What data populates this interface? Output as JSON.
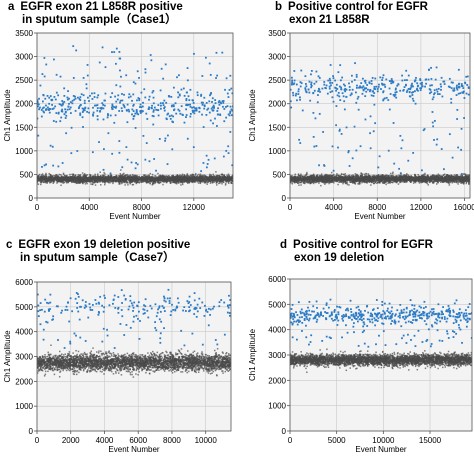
{
  "colors": {
    "positive": "#2b7bc6",
    "negative": "#4a4a4a",
    "grid": "#c9c9c9",
    "frame": "#555555"
  },
  "chart_data": [
    {
      "type": "scatter",
      "letter": "a",
      "title_lines": [
        "EGFR exon 21 L858R positive",
        "in sputum sample（Case1）"
      ],
      "xlabel": "Event Number",
      "ylabel": "Ch1 Amplitude",
      "xlim": [
        0,
        15000
      ],
      "ylim": [
        0,
        3500
      ],
      "xticks": [
        0,
        4000,
        8000,
        12000
      ],
      "yticks": [
        0,
        500,
        1000,
        1500,
        2000,
        2500,
        3000,
        3500
      ],
      "grid": true,
      "series": [
        {
          "role": "positive",
          "count": 520,
          "center": 1950,
          "spread": 160,
          "outlier_fraction": 0.3,
          "outlier_range": [
            500,
            3250
          ]
        },
        {
          "role": "negative",
          "count": 3200,
          "center": 400,
          "spread": 40
        }
      ]
    },
    {
      "type": "scatter",
      "letter": "b",
      "title_lines": [
        "Positive control for EGFR",
        "exon 21 L858R"
      ],
      "xlabel": "Event Number",
      "ylabel": "Ch1 Amplitude",
      "xlim": [
        0,
        16500
      ],
      "ylim": [
        0,
        3500
      ],
      "xticks": [
        0,
        4000,
        8000,
        12000,
        16000
      ],
      "yticks": [
        0,
        500,
        1000,
        1500,
        2000,
        2500,
        3000,
        3500
      ],
      "grid": true,
      "series": [
        {
          "role": "positive",
          "count": 420,
          "center": 2350,
          "spread": 130,
          "outlier_fraction": 0.3,
          "outlier_range": [
            500,
            2900
          ]
        },
        {
          "role": "negative",
          "count": 3200,
          "center": 400,
          "spread": 40
        }
      ]
    },
    {
      "type": "scatter",
      "letter": "c",
      "title_lines": [
        "EGFR exon 19 deletion positive",
        "in sputum sample（Case7）"
      ],
      "xlabel": "Event Number",
      "ylabel": "Ch1 Amplitude",
      "xlim": [
        0,
        11500
      ],
      "ylim": [
        0,
        6000
      ],
      "xticks": [
        0,
        2000,
        4000,
        6000,
        8000,
        10000
      ],
      "yticks": [
        0,
        1000,
        2000,
        3000,
        4000,
        5000,
        6000
      ],
      "grid": true,
      "series": [
        {
          "role": "positive",
          "count": 230,
          "center": 5000,
          "spread": 260,
          "outlier_fraction": 0.35,
          "outlier_range": [
            3300,
            5700
          ]
        },
        {
          "role": "negative",
          "count": 3500,
          "center": 2750,
          "spread": 170
        }
      ]
    },
    {
      "type": "scatter",
      "letter": "d",
      "title_lines": [
        "Positive control for EGFR",
        "exon 19 deletion"
      ],
      "xlabel": "Event Number",
      "ylabel": "Ch1 Amplitude",
      "xlim": [
        0,
        19500
      ],
      "ylim": [
        0,
        6000
      ],
      "xticks": [
        0,
        5000,
        10000,
        15000
      ],
      "yticks": [
        0,
        1000,
        2000,
        3000,
        4000,
        5000,
        6000
      ],
      "grid": true,
      "series": [
        {
          "role": "positive",
          "count": 480,
          "center": 4550,
          "spread": 160,
          "outlier_fraction": 0.3,
          "outlier_range": [
            3300,
            5200
          ]
        },
        {
          "role": "negative",
          "count": 3500,
          "center": 2800,
          "spread": 110
        }
      ]
    }
  ]
}
